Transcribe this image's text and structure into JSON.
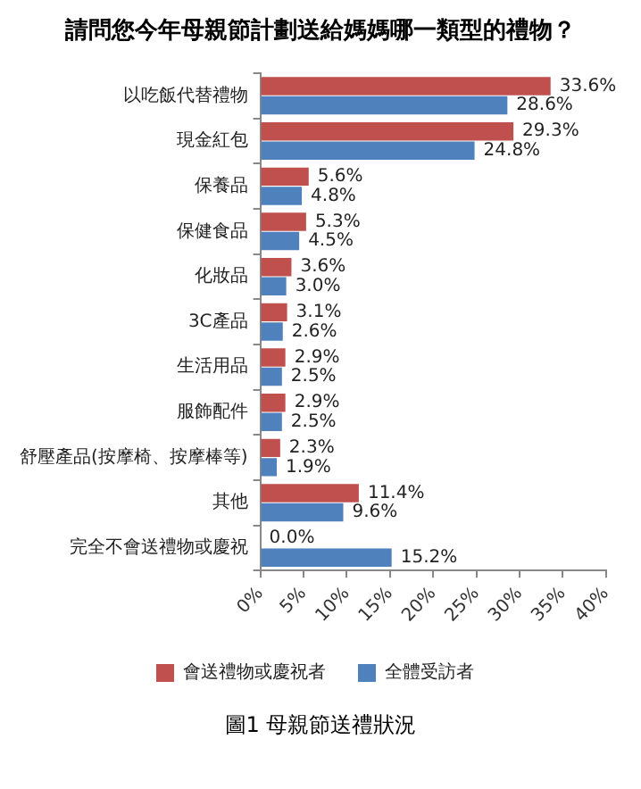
{
  "chart_data": {
    "type": "bar",
    "orientation": "horizontal",
    "title": "請問您今年母親節計劃送給媽媽哪一類型的禮物？",
    "categories": [
      "以吃飯代替禮物",
      "現金紅包",
      "保養品",
      "保健食品",
      "化妝品",
      "3C產品",
      "生活用品",
      "服飾配件",
      "舒壓產品(按摩椅、按摩棒等)",
      "其他",
      "完全不會送禮物或慶祝"
    ],
    "series": [
      {
        "name": "會送禮物或慶祝者",
        "color": "#c0504d",
        "values": [
          33.6,
          29.3,
          5.6,
          5.3,
          3.6,
          3.1,
          2.9,
          2.9,
          2.3,
          11.4,
          0.0
        ],
        "value_labels": [
          "33.6%",
          "29.3%",
          "5.6%",
          "5.3%",
          "3.6%",
          "3.1%",
          "2.9%",
          "2.9%",
          "2.3%",
          "11.4%",
          "0.0%"
        ]
      },
      {
        "name": "全體受訪者",
        "color": "#4f81bd",
        "values": [
          28.6,
          24.8,
          4.8,
          4.5,
          3.0,
          2.6,
          2.5,
          2.5,
          1.9,
          9.6,
          15.2
        ],
        "value_labels": [
          "28.6%",
          "24.8%",
          "4.8%",
          "4.5%",
          "3.0%",
          "2.6%",
          "2.5%",
          "2.5%",
          "1.9%",
          "9.6%",
          "15.2%"
        ]
      }
    ],
    "xlim": [
      0,
      40
    ],
    "xticks": [
      {
        "value": 0,
        "label": "0%"
      },
      {
        "value": 5,
        "label": "5%"
      },
      {
        "value": 10,
        "label": "10%"
      },
      {
        "value": 15,
        "label": "15%"
      },
      {
        "value": 20,
        "label": "20%"
      },
      {
        "value": 25,
        "label": "25%"
      },
      {
        "value": 30,
        "label": "30%"
      },
      {
        "value": 35,
        "label": "35%"
      },
      {
        "value": 40,
        "label": "40%"
      }
    ],
    "legend": "bottom",
    "annotations": [
      "圖1 母親節送禮狀況"
    ]
  }
}
